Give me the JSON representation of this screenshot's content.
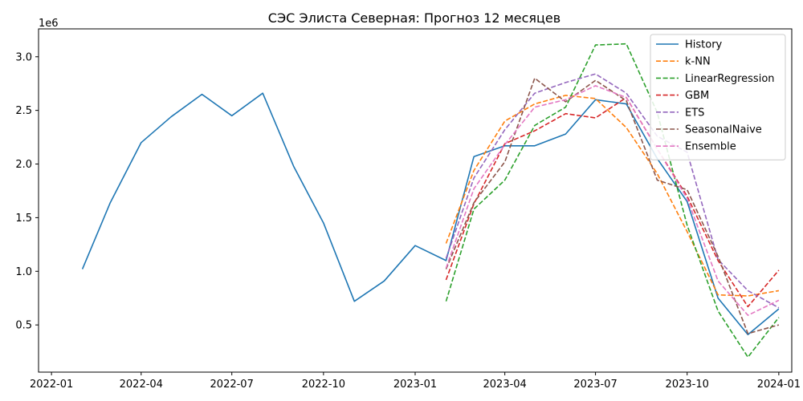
{
  "chart_data": {
    "type": "line",
    "title": "СЭС Элиста Северная: Прогноз 12 месяцев",
    "xlabel": "",
    "ylabel": "",
    "y_scale_label": "1e6",
    "grid": false,
    "legend_position": "top-right",
    "xlim": [
      "2021-12-19",
      "2024-01-14"
    ],
    "ylim": [
      0.06,
      3.26
    ],
    "x_ticks": [
      {
        "date": "2022-01-01",
        "label": "2022-01"
      },
      {
        "date": "2022-04-01",
        "label": "2022-04"
      },
      {
        "date": "2022-07-01",
        "label": "2022-07"
      },
      {
        "date": "2022-10-01",
        "label": "2022-10"
      },
      {
        "date": "2023-01-01",
        "label": "2023-01"
      },
      {
        "date": "2023-04-01",
        "label": "2023-04"
      },
      {
        "date": "2023-07-01",
        "label": "2023-07"
      },
      {
        "date": "2023-10-01",
        "label": "2023-10"
      },
      {
        "date": "2024-01-01",
        "label": "2024-01"
      }
    ],
    "y_ticks": [
      {
        "value": 0.5,
        "label": "0.5"
      },
      {
        "value": 1.0,
        "label": "1.0"
      },
      {
        "value": 1.5,
        "label": "1.5"
      },
      {
        "value": 2.0,
        "label": "2.0"
      },
      {
        "value": 2.5,
        "label": "2.5"
      },
      {
        "value": 3.0,
        "label": "3.0"
      }
    ],
    "series": [
      {
        "name": "History",
        "color": "#1f77b4",
        "style": "solid",
        "x": [
          "2022-02-01",
          "2022-03-01",
          "2022-04-01",
          "2022-05-01",
          "2022-06-01",
          "2022-07-01",
          "2022-08-01",
          "2022-09-01",
          "2022-10-01",
          "2022-11-01",
          "2022-12-01",
          "2023-01-01",
          "2023-02-01",
          "2023-03-01",
          "2023-04-01",
          "2023-05-01",
          "2023-06-01",
          "2023-07-01",
          "2023-08-01",
          "2023-09-01",
          "2023-10-01",
          "2023-11-01",
          "2023-12-01",
          "2024-01-01"
        ],
        "y": [
          1.02,
          1.64,
          2.2,
          2.44,
          2.65,
          2.45,
          2.66,
          1.98,
          1.45,
          0.72,
          0.91,
          1.24,
          1.1,
          2.07,
          2.17,
          2.17,
          2.28,
          2.6,
          2.56,
          2.05,
          1.65,
          0.75,
          0.41,
          0.65
        ]
      },
      {
        "name": "k-NN",
        "color": "#ff7f0e",
        "style": "dashed",
        "x": [
          "2023-02-01",
          "2023-03-01",
          "2023-04-01",
          "2023-05-01",
          "2023-06-01",
          "2023-07-01",
          "2023-08-01",
          "2023-09-01",
          "2023-10-01",
          "2023-11-01",
          "2023-12-01",
          "2024-01-01"
        ],
        "y": [
          1.26,
          1.94,
          2.4,
          2.56,
          2.64,
          2.61,
          2.34,
          1.91,
          1.37,
          0.78,
          0.77,
          0.82
        ]
      },
      {
        "name": "LinearRegression",
        "color": "#2ca02c",
        "style": "dashed",
        "x": [
          "2023-02-01",
          "2023-03-01",
          "2023-04-01",
          "2023-05-01",
          "2023-06-01",
          "2023-07-01",
          "2023-08-01",
          "2023-09-01",
          "2023-10-01",
          "2023-11-01",
          "2023-12-01",
          "2024-01-01"
        ],
        "y": [
          0.72,
          1.58,
          1.85,
          2.36,
          2.53,
          3.11,
          3.12,
          2.48,
          1.43,
          0.63,
          0.2,
          0.57
        ]
      },
      {
        "name": "GBM",
        "color": "#d62728",
        "style": "dashed",
        "x": [
          "2023-02-01",
          "2023-03-01",
          "2023-04-01",
          "2023-05-01",
          "2023-06-01",
          "2023-07-01",
          "2023-08-01",
          "2023-09-01",
          "2023-10-01",
          "2023-11-01",
          "2023-12-01",
          "2024-01-01"
        ],
        "y": [
          0.92,
          1.63,
          2.19,
          2.31,
          2.47,
          2.43,
          2.62,
          2.14,
          1.7,
          1.1,
          0.67,
          1.01
        ]
      },
      {
        "name": "ETS",
        "color": "#9467bd",
        "style": "dashed",
        "x": [
          "2023-02-01",
          "2023-03-01",
          "2023-04-01",
          "2023-05-01",
          "2023-06-01",
          "2023-07-01",
          "2023-08-01",
          "2023-09-01",
          "2023-10-01",
          "2023-11-01",
          "2023-12-01",
          "2024-01-01"
        ],
        "y": [
          1.12,
          1.87,
          2.32,
          2.66,
          2.76,
          2.84,
          2.66,
          2.26,
          2.11,
          1.11,
          0.82,
          0.66
        ]
      },
      {
        "name": "SeasonalNaive",
        "color": "#8c564b",
        "style": "dashed",
        "x": [
          "2023-02-01",
          "2023-03-01",
          "2023-04-01",
          "2023-05-01",
          "2023-06-01",
          "2023-07-01",
          "2023-08-01",
          "2023-09-01",
          "2023-10-01",
          "2023-11-01",
          "2023-12-01",
          "2024-01-01"
        ],
        "y": [
          1.02,
          1.64,
          2.02,
          2.8,
          2.58,
          2.78,
          2.59,
          1.85,
          1.76,
          1.14,
          0.42,
          0.5
        ]
      },
      {
        "name": "Ensemble",
        "color": "#e377c2",
        "style": "dashed",
        "x": [
          "2023-02-01",
          "2023-03-01",
          "2023-04-01",
          "2023-05-01",
          "2023-06-01",
          "2023-07-01",
          "2023-08-01",
          "2023-09-01",
          "2023-10-01",
          "2023-11-01",
          "2023-12-01",
          "2024-01-01"
        ],
        "y": [
          1.03,
          1.77,
          2.18,
          2.53,
          2.6,
          2.73,
          2.62,
          2.14,
          1.68,
          0.91,
          0.59,
          0.73
        ]
      }
    ]
  }
}
